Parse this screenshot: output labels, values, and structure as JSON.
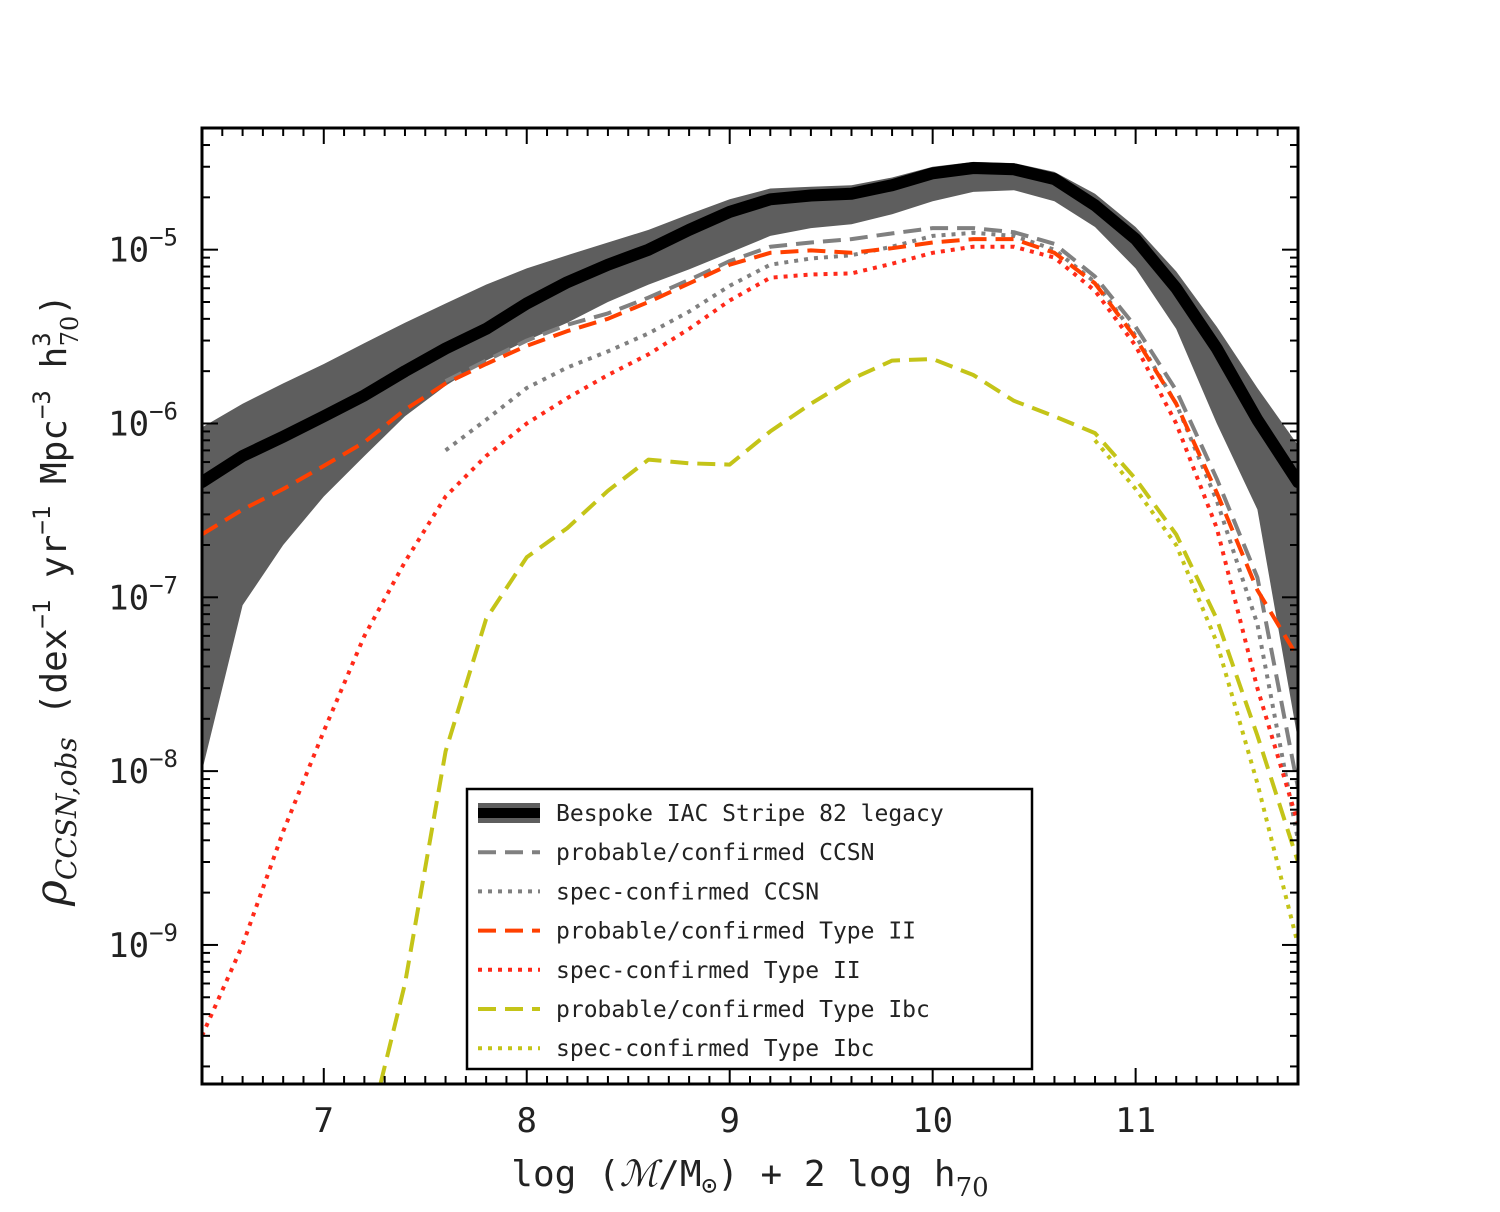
{
  "chart_data": {
    "type": "line",
    "title": "",
    "xlabel": "log (ℳ/M⊙) + 2 log h70",
    "xlabel_parts": {
      "pre": "log (",
      "M": "ℳ",
      "mid": "/M",
      "sun": "⊙",
      "post": ") + 2 log h",
      "sub": "70"
    },
    "ylabel": "ρCCSN,obs (dex−1 yr−1 Mpc−3 h70^3)",
    "ylabel_parts": {
      "rho": "ρ",
      "rho_sub": "CCSN,obs",
      "units_a": "(dex",
      "exp_a": "−1",
      "units_b": " yr",
      "exp_b": "−1",
      "units_c": " Mpc",
      "exp_c": "−3",
      "units_d": " h",
      "sup_d": "3",
      "sub_d": "70",
      "close": ")"
    },
    "x_range": [
      6.4,
      11.8
    ],
    "y_range_log10": [
      -9.8,
      -4.3
    ],
    "yscale": "log",
    "x_ticks": [
      7,
      8,
      9,
      10,
      11
    ],
    "x_tick_labels": [
      "7",
      "8",
      "9",
      "10",
      "11"
    ],
    "y_ticks_log10": [
      -9,
      -8,
      -7,
      -6,
      -5
    ],
    "y_tick_labels": [
      {
        "base": "10",
        "exp": "−9"
      },
      {
        "base": "10",
        "exp": "−8"
      },
      {
        "base": "10",
        "exp": "−7"
      },
      {
        "base": "10",
        "exp": "−6"
      },
      {
        "base": "10",
        "exp": "−5"
      }
    ],
    "legend_position": "lower-center",
    "band": {
      "name": "Bespoke IAC Stripe 82 legacy (uncertainty)",
      "color": "#5e5e5e",
      "x": [
        6.4,
        6.6,
        6.8,
        7.0,
        7.2,
        7.4,
        7.6,
        7.8,
        8.0,
        8.2,
        8.4,
        8.6,
        8.8,
        9.0,
        9.2,
        9.4,
        9.6,
        9.8,
        10.0,
        10.2,
        10.4,
        10.6,
        10.8,
        11.0,
        11.2,
        11.4,
        11.6,
        11.8
      ],
      "upper": [
        9.5e-07,
        1.3e-06,
        1.7e-06,
        2.2e-06,
        2.9e-06,
        3.8e-06,
        4.9e-06,
        6.3e-06,
        7.8e-06,
        9.3e-06,
        1.1e-05,
        1.3e-05,
        1.6e-05,
        1.95e-05,
        2.25e-05,
        2.3e-05,
        2.35e-05,
        2.6e-05,
        3e-05,
        3.2e-05,
        3.15e-05,
        2.8e-05,
        2.1e-05,
        1.35e-05,
        7.5e-06,
        3.6e-06,
        1.6e-06,
        7.5e-07
      ],
      "lower": [
        1e-08,
        9e-08,
        2e-07,
        3.8e-07,
        6.5e-07,
        1.1e-06,
        1.65e-06,
        2.3e-06,
        3e-06,
        3.8e-06,
        5e-06,
        6.3e-06,
        7.7e-06,
        9.6e-06,
        1.2e-05,
        1.33e-05,
        1.4e-05,
        1.6e-05,
        1.9e-05,
        2.15e-05,
        2.2e-05,
        1.9e-05,
        1.35e-05,
        7.8e-06,
        3.5e-06,
        1e-06,
        3.2e-07,
        1.5e-08
      ]
    },
    "series": [
      {
        "name": "Bespoke IAC Stripe 82 legacy",
        "color": "#000000",
        "dash": "solid",
        "width": 12,
        "x": [
          6.4,
          6.6,
          6.8,
          7.0,
          7.2,
          7.4,
          7.6,
          7.8,
          8.0,
          8.2,
          8.4,
          8.6,
          8.8,
          9.0,
          9.2,
          9.4,
          9.6,
          9.8,
          10.0,
          10.2,
          10.4,
          10.6,
          10.8,
          11.0,
          11.2,
          11.4,
          11.6,
          11.8
        ],
        "values": [
          4.6e-07,
          6.5e-07,
          8.4e-07,
          1.1e-06,
          1.45e-06,
          2e-06,
          2.7e-06,
          3.5e-06,
          4.9e-06,
          6.5e-06,
          8.2e-06,
          1e-05,
          1.3e-05,
          1.65e-05,
          1.95e-05,
          2.05e-05,
          2.1e-05,
          2.35e-05,
          2.75e-05,
          2.95e-05,
          2.9e-05,
          2.55e-05,
          1.8e-05,
          1.15e-05,
          6e-06,
          2.7e-06,
          1.05e-06,
          4.6e-07
        ]
      },
      {
        "name": "probable/confirmed CCSN",
        "color": "#808080",
        "dash": "dashed",
        "width": 4,
        "x": [
          7.6,
          7.8,
          8.0,
          8.2,
          8.4,
          8.6,
          8.8,
          9.0,
          9.2,
          9.4,
          9.6,
          9.8,
          10.0,
          10.2,
          10.4,
          10.6,
          10.8,
          11.0,
          11.2,
          11.4,
          11.6,
          11.8
        ],
        "values": [
          1.75e-06,
          2.3e-06,
          3e-06,
          3.7e-06,
          4.3e-06,
          5.3e-06,
          6.7e-06,
          8.6e-06,
          1.04e-05,
          1.1e-05,
          1.15e-05,
          1.24e-05,
          1.33e-05,
          1.33e-05,
          1.26e-05,
          1.08e-05,
          7e-06,
          3.6e-06,
          1.55e-06,
          4.8e-07,
          1.3e-07,
          8e-09
        ]
      },
      {
        "name": "spec-confirmed CCSN",
        "color": "#808080",
        "dash": "dotted",
        "width": 4,
        "x": [
          7.6,
          7.8,
          8.0,
          8.2,
          8.4,
          8.6,
          8.8,
          9.0,
          9.2,
          9.4,
          9.6,
          9.8,
          10.0,
          10.2,
          10.4,
          10.6,
          10.8,
          11.0,
          11.2,
          11.4,
          11.6,
          11.8
        ],
        "values": [
          7e-07,
          1.05e-06,
          1.6e-06,
          2.1e-06,
          2.6e-06,
          3.3e-06,
          4.4e-06,
          6.2e-06,
          8.2e-06,
          8.9e-06,
          9.3e-06,
          1.04e-05,
          1.2e-05,
          1.25e-05,
          1.2e-05,
          1e-05,
          6.5e-06,
          3.2e-06,
          1.3e-06,
          3.6e-07,
          7e-08,
          4e-09
        ]
      },
      {
        "name": "probable/confirmed Type II",
        "color": "#ff4000",
        "dash": "dashed",
        "width": 4,
        "x": [
          6.4,
          6.6,
          6.8,
          7.0,
          7.2,
          7.4,
          7.6,
          7.8,
          8.0,
          8.2,
          8.4,
          8.6,
          8.8,
          9.0,
          9.2,
          9.4,
          9.6,
          9.8,
          10.0,
          10.2,
          10.4,
          10.6,
          10.8,
          11.0,
          11.2,
          11.4,
          11.6,
          11.8
        ],
        "values": [
          2.3e-07,
          3.2e-07,
          4.2e-07,
          5.7e-07,
          7.8e-07,
          1.2e-06,
          1.7e-06,
          2.2e-06,
          2.8e-06,
          3.4e-06,
          4e-06,
          5e-06,
          6.4e-06,
          8.2e-06,
          9.6e-06,
          9.9e-06,
          9.6e-06,
          1.02e-05,
          1.1e-05,
          1.15e-05,
          1.15e-05,
          9.6e-06,
          6.4e-06,
          3.1e-06,
          1.3e-06,
          4e-07,
          1.1e-07,
          4.5e-08
        ]
      },
      {
        "name": "spec-confirmed Type II",
        "color": "#ff2a1a",
        "dash": "dotted",
        "width": 4,
        "x": [
          6.4,
          6.6,
          6.8,
          7.0,
          7.2,
          7.4,
          7.6,
          7.8,
          8.0,
          8.2,
          8.4,
          8.6,
          8.8,
          9.0,
          9.2,
          9.4,
          9.6,
          9.8,
          10.0,
          10.2,
          10.4,
          10.6,
          10.8,
          11.0,
          11.2,
          11.4,
          11.6,
          11.8
        ],
        "values": [
          3e-10,
          1e-09,
          4.5e-09,
          1.7e-08,
          6e-08,
          1.6e-07,
          3.8e-07,
          6.5e-07,
          1e-06,
          1.4e-06,
          1.9e-06,
          2.5e-06,
          3.5e-06,
          5.1e-06,
          6.9e-06,
          7.2e-06,
          7.3e-06,
          8.3e-06,
          9.6e-06,
          1.04e-05,
          1.04e-05,
          9e-06,
          5.8e-06,
          2.8e-06,
          1e-06,
          2.5e-07,
          3e-08,
          5e-09
        ]
      },
      {
        "name": "probable/confirmed Type Ibc",
        "color": "#c4c418",
        "dash": "dashed",
        "width": 4,
        "x": [
          7.28,
          7.4,
          7.6,
          7.8,
          8.0,
          8.2,
          8.4,
          8.6,
          8.8,
          9.0,
          9.2,
          9.4,
          9.6,
          9.8,
          10.0,
          10.2,
          10.4,
          10.6,
          10.8,
          11.0,
          11.2,
          11.4,
          11.6,
          11.8
        ],
        "values": [
          1.6e-10,
          6e-10,
          1.3e-08,
          7.5e-08,
          1.7e-07,
          2.5e-07,
          4.1e-07,
          6.2e-07,
          5.9e-07,
          5.8e-07,
          9e-07,
          1.3e-06,
          1.8e-06,
          2.3e-06,
          2.35e-06,
          1.9e-06,
          1.35e-06,
          1.1e-06,
          8.8e-07,
          4.8e-07,
          2.3e-07,
          7.5e-08,
          1.6e-08,
          3e-09
        ]
      },
      {
        "name": "spec-confirmed Type Ibc",
        "color": "#c4c418",
        "dash": "dotted",
        "width": 4,
        "x": [
          10.8,
          11.0,
          11.2,
          11.4,
          11.6,
          11.8
        ],
        "values": [
          8e-07,
          4.2e-07,
          2e-07,
          5.5e-08,
          8.5e-09,
          1e-09
        ]
      }
    ]
  }
}
